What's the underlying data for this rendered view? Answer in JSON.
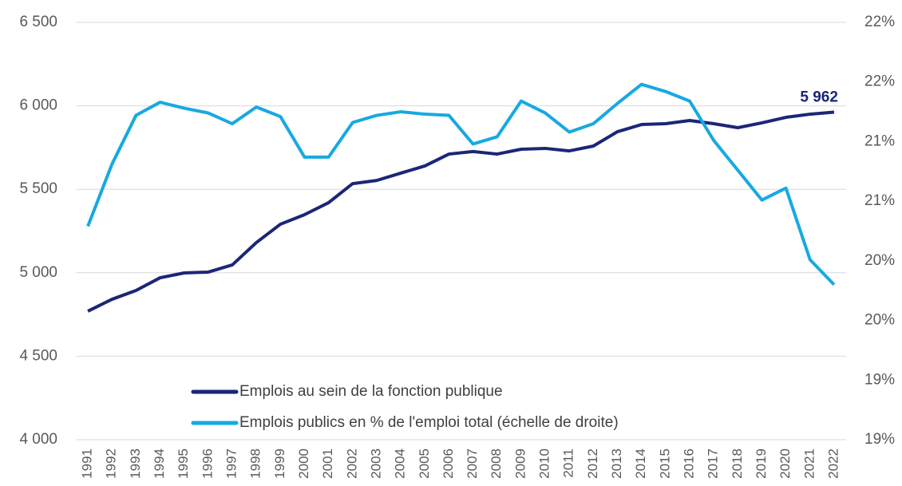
{
  "chart_data": {
    "type": "line",
    "categories": [
      "1991",
      "1992",
      "1993",
      "1994",
      "1995",
      "1996",
      "1997",
      "1998",
      "1999",
      "2000",
      "2001",
      "2002",
      "2003",
      "2004",
      "2005",
      "2006",
      "2007",
      "2008",
      "2009",
      "2010",
      "2011",
      "2012",
      "2013",
      "2014",
      "2015",
      "2016",
      "2017",
      "2018",
      "2019",
      "2020",
      "2021",
      "2022"
    ],
    "series": [
      {
        "name": "Emplois au sein de la fonction publique",
        "color": "#1c2677",
        "values": [
          4770,
          4841,
          4894,
          4970,
          4999,
          5004,
          5047,
          5181,
          5291,
          5348,
          5420,
          5534,
          5553,
          5597,
          5640,
          5711,
          5726,
          5711,
          5740,
          5745,
          5730,
          5759,
          5845,
          5888,
          5893,
          5912,
          5893,
          5869,
          5898,
          5931,
          5950,
          5962
        ],
        "value_labels": [
          null,
          null,
          null,
          null,
          null,
          null,
          null,
          null,
          null,
          null,
          null,
          null,
          null,
          null,
          null,
          null,
          null,
          null,
          null,
          null,
          null,
          null,
          null,
          null,
          null,
          null,
          null,
          null,
          null,
          null,
          null,
          "5 962"
        ]
      },
      {
        "name": "Emplois publics en % de l'emploi total (échelle de droite)",
        "color": "#17a9e1",
        "axis": "y2",
        "values": [
          20.54,
          21.06,
          21.47,
          21.58,
          21.53,
          21.49,
          21.4,
          21.54,
          21.46,
          21.12,
          21.12,
          21.41,
          21.47,
          21.5,
          21.48,
          21.47,
          21.23,
          21.29,
          21.59,
          21.49,
          21.33,
          21.4,
          21.57,
          21.73,
          21.67,
          21.59,
          21.26,
          21.01,
          20.76,
          20.86,
          20.26,
          20.05
        ]
      }
    ],
    "ylim": [
      4000,
      6500
    ],
    "yticks": [
      {
        "value": 4000,
        "label": "4 000"
      },
      {
        "value": 4500,
        "label": "4 500"
      },
      {
        "value": 5000,
        "label": "5 000"
      },
      {
        "value": 5500,
        "label": "5 500"
      },
      {
        "value": 6000,
        "label": "6 000"
      },
      {
        "value": 6500,
        "label": "6 500"
      }
    ],
    "y2lim": [
      18.75,
      22.25
    ],
    "y2ticks": [
      {
        "value": 18.75,
        "label": "19%"
      },
      {
        "value": 19.25,
        "label": "19%"
      },
      {
        "value": 19.75,
        "label": "20%"
      },
      {
        "value": 20.25,
        "label": "20%"
      },
      {
        "value": 20.75,
        "label": "21%"
      },
      {
        "value": 21.25,
        "label": "21%"
      },
      {
        "value": 21.75,
        "label": "22%"
      },
      {
        "value": 22.25,
        "label": "22%"
      }
    ],
    "grid": true
  }
}
